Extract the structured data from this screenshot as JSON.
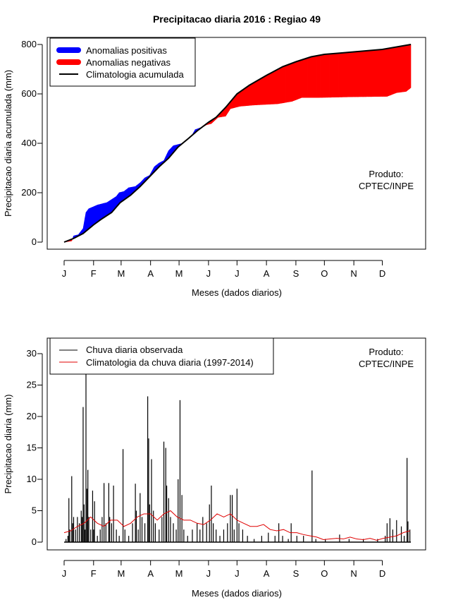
{
  "chart_data": [
    {
      "type": "area",
      "title": "Precipitacao diaria 2016 : Regiao 49",
      "xlabel": "Meses (dados diarios)",
      "ylabel": "Precipitacao diaria acumulada (mm)",
      "xlim": [
        0,
        365
      ],
      "ylim": [
        0,
        800
      ],
      "yticks": [
        0,
        200,
        400,
        600,
        800
      ],
      "month_ticks": [
        0,
        31,
        60,
        91,
        121,
        152,
        182,
        213,
        244,
        274,
        305,
        335
      ],
      "month_labels": [
        "J",
        "F",
        "M",
        "A",
        "M",
        "J",
        "J",
        "A",
        "S",
        "O",
        "N",
        "D"
      ],
      "legend_position": "top-left",
      "legend": [
        "Anomalias positivas",
        "Anomalias negativas",
        "Climatologia acumulada"
      ],
      "annotation": [
        "Produto:",
        "CPTEC/INPE"
      ],
      "colors": {
        "positive": "#0000ff",
        "negative": "#ff0000",
        "line": "#000000"
      },
      "climatology_cumulative": [
        [
          0,
          0
        ],
        [
          10,
          15
        ],
        [
          20,
          35
        ],
        [
          31,
          70
        ],
        [
          40,
          95
        ],
        [
          50,
          120
        ],
        [
          59,
          160
        ],
        [
          70,
          190
        ],
        [
          80,
          225
        ],
        [
          90,
          265
        ],
        [
          100,
          305
        ],
        [
          110,
          340
        ],
        [
          120,
          385
        ],
        [
          131,
          420
        ],
        [
          140,
          450
        ],
        [
          152,
          485
        ],
        [
          160,
          505
        ],
        [
          170,
          545
        ],
        [
          182,
          600
        ],
        [
          195,
          635
        ],
        [
          213,
          675
        ],
        [
          230,
          710
        ],
        [
          244,
          730
        ],
        [
          260,
          750
        ],
        [
          274,
          760
        ],
        [
          290,
          765
        ],
        [
          305,
          770
        ],
        [
          320,
          775
        ],
        [
          335,
          780
        ],
        [
          350,
          790
        ],
        [
          365,
          800
        ]
      ],
      "observed_cumulative": [
        [
          0,
          0
        ],
        [
          8,
          5
        ],
        [
          10,
          25
        ],
        [
          15,
          30
        ],
        [
          20,
          55
        ],
        [
          23,
          120
        ],
        [
          26,
          135
        ],
        [
          35,
          150
        ],
        [
          40,
          155
        ],
        [
          45,
          160
        ],
        [
          55,
          185
        ],
        [
          58,
          200
        ],
        [
          63,
          205
        ],
        [
          68,
          220
        ],
        [
          75,
          225
        ],
        [
          80,
          240
        ],
        [
          85,
          260
        ],
        [
          90,
          270
        ],
        [
          95,
          305
        ],
        [
          100,
          320
        ],
        [
          105,
          330
        ],
        [
          110,
          370
        ],
        [
          115,
          390
        ],
        [
          120,
          395
        ],
        [
          125,
          400
        ],
        [
          130,
          415
        ],
        [
          135,
          435
        ],
        [
          138,
          455
        ],
        [
          145,
          465
        ],
        [
          150,
          475
        ],
        [
          155,
          480
        ],
        [
          162,
          505
        ],
        [
          170,
          510
        ],
        [
          175,
          540
        ],
        [
          185,
          550
        ],
        [
          200,
          555
        ],
        [
          225,
          560
        ],
        [
          240,
          570
        ],
        [
          250,
          585
        ],
        [
          265,
          585
        ],
        [
          300,
          588
        ],
        [
          340,
          590
        ],
        [
          350,
          605
        ],
        [
          360,
          610
        ],
        [
          365,
          625
        ]
      ]
    },
    {
      "type": "bar",
      "xlabel": "Meses (dados diarios)",
      "ylabel": "Precipitacao diaria (mm)",
      "xlim": [
        0,
        365
      ],
      "ylim": [
        0,
        30
      ],
      "yticks": [
        0,
        5,
        10,
        15,
        20,
        25,
        30
      ],
      "month_ticks": [
        0,
        31,
        60,
        91,
        121,
        152,
        182,
        213,
        244,
        274,
        305,
        335
      ],
      "month_labels": [
        "J",
        "F",
        "M",
        "A",
        "M",
        "J",
        "J",
        "A",
        "S",
        "O",
        "N",
        "D"
      ],
      "legend_position": "top-left",
      "legend": [
        "Chuva diaria observada",
        "Climatologia da chuva diaria (1997-2014)"
      ],
      "annotation": [
        "Produto:",
        "CPTEC/INPE"
      ],
      "colors": {
        "observed": "#000000",
        "climatology": "#e00000"
      },
      "observed_daily": [
        [
          2,
          0.5
        ],
        [
          4,
          1
        ],
        [
          5,
          7
        ],
        [
          6,
          2
        ],
        [
          8,
          10.5
        ],
        [
          9,
          3
        ],
        [
          10,
          4
        ],
        [
          12,
          2
        ],
        [
          14,
          4
        ],
        [
          16,
          3
        ],
        [
          18,
          5
        ],
        [
          19,
          4
        ],
        [
          20,
          21.5
        ],
        [
          21,
          6
        ],
        [
          22,
          2
        ],
        [
          23,
          27
        ],
        [
          24,
          8.5
        ],
        [
          25,
          11.5
        ],
        [
          26,
          4
        ],
        [
          28,
          2
        ],
        [
          30,
          8.2
        ],
        [
          31,
          2
        ],
        [
          32,
          6.5
        ],
        [
          35,
          1
        ],
        [
          38,
          2
        ],
        [
          40,
          4
        ],
        [
          42,
          9.4
        ],
        [
          44,
          3
        ],
        [
          47,
          9.4
        ],
        [
          48,
          4
        ],
        [
          50,
          3
        ],
        [
          52,
          9.0
        ],
        [
          55,
          2
        ],
        [
          58,
          1
        ],
        [
          62,
          14.8
        ],
        [
          64,
          2
        ],
        [
          68,
          1
        ],
        [
          72,
          3
        ],
        [
          75,
          9.3
        ],
        [
          76,
          5
        ],
        [
          78,
          2
        ],
        [
          80,
          7.8
        ],
        [
          82,
          4
        ],
        [
          85,
          3
        ],
        [
          88,
          23.2
        ],
        [
          89,
          16.5
        ],
        [
          90,
          6
        ],
        [
          92,
          13.2
        ],
        [
          94,
          5
        ],
        [
          96,
          3
        ],
        [
          100,
          2
        ],
        [
          103,
          4
        ],
        [
          105,
          16
        ],
        [
          107,
          15
        ],
        [
          108,
          9
        ],
        [
          110,
          7
        ],
        [
          112,
          4
        ],
        [
          115,
          3
        ],
        [
          118,
          2
        ],
        [
          120,
          10
        ],
        [
          122,
          22.6
        ],
        [
          124,
          7.5
        ],
        [
          126,
          2
        ],
        [
          130,
          1
        ],
        [
          135,
          2
        ],
        [
          140,
          3
        ],
        [
          143,
          2
        ],
        [
          146,
          4
        ],
        [
          150,
          3
        ],
        [
          153,
          6
        ],
        [
          155,
          9
        ],
        [
          157,
          3
        ],
        [
          160,
          2
        ],
        [
          164,
          1
        ],
        [
          168,
          2
        ],
        [
          172,
          3
        ],
        [
          175,
          7.5
        ],
        [
          177,
          7.5
        ],
        [
          179,
          2
        ],
        [
          182,
          8.5
        ],
        [
          184,
          3
        ],
        [
          188,
          2
        ],
        [
          193,
          1
        ],
        [
          200,
          0.5
        ],
        [
          208,
          1
        ],
        [
          215,
          1.5
        ],
        [
          222,
          1
        ],
        [
          226,
          3
        ],
        [
          230,
          1
        ],
        [
          236,
          0.5
        ],
        [
          239,
          3
        ],
        [
          245,
          1
        ],
        [
          252,
          1
        ],
        [
          261,
          11.4
        ],
        [
          265,
          0.5
        ],
        [
          275,
          0.5
        ],
        [
          290,
          1.2
        ],
        [
          300,
          0.5
        ],
        [
          315,
          0.5
        ],
        [
          330,
          0.5
        ],
        [
          338,
          1
        ],
        [
          340,
          3
        ],
        [
          343,
          3.8
        ],
        [
          346,
          2
        ],
        [
          350,
          3.5
        ],
        [
          355,
          2.5
        ],
        [
          358,
          1
        ],
        [
          361,
          13.4
        ],
        [
          362,
          3.3
        ],
        [
          364,
          2
        ]
      ],
      "climatology_daily": [
        [
          0,
          1.5
        ],
        [
          7,
          1.8
        ],
        [
          14,
          2.5
        ],
        [
          21,
          3
        ],
        [
          28,
          4
        ],
        [
          35,
          3
        ],
        [
          42,
          2.5
        ],
        [
          49,
          3.5
        ],
        [
          56,
          3.5
        ],
        [
          63,
          2.5
        ],
        [
          70,
          3
        ],
        [
          77,
          4
        ],
        [
          84,
          4.5
        ],
        [
          91,
          4.5
        ],
        [
          98,
          3.5
        ],
        [
          105,
          4.5
        ],
        [
          112,
          5
        ],
        [
          119,
          4
        ],
        [
          126,
          3.5
        ],
        [
          133,
          3.5
        ],
        [
          140,
          3
        ],
        [
          147,
          2.8
        ],
        [
          154,
          3.5
        ],
        [
          161,
          4.5
        ],
        [
          168,
          4
        ],
        [
          175,
          4.5
        ],
        [
          182,
          3.5
        ],
        [
          189,
          3
        ],
        [
          196,
          2.5
        ],
        [
          203,
          2.5
        ],
        [
          210,
          2.8
        ],
        [
          217,
          2
        ],
        [
          224,
          1.8
        ],
        [
          231,
          2
        ],
        [
          238,
          1.5
        ],
        [
          245,
          1.5
        ],
        [
          252,
          1.2
        ],
        [
          259,
          1
        ],
        [
          266,
          0.8
        ],
        [
          273,
          0.4
        ],
        [
          280,
          0.5
        ],
        [
          287,
          0.6
        ],
        [
          294,
          0.5
        ],
        [
          301,
          0.8
        ],
        [
          308,
          0.5
        ],
        [
          315,
          0.4
        ],
        [
          322,
          0.6
        ],
        [
          329,
          0.3
        ],
        [
          336,
          0.6
        ],
        [
          343,
          0.8
        ],
        [
          350,
          1
        ],
        [
          357,
          1.5
        ],
        [
          364,
          1.8
        ]
      ]
    }
  ]
}
